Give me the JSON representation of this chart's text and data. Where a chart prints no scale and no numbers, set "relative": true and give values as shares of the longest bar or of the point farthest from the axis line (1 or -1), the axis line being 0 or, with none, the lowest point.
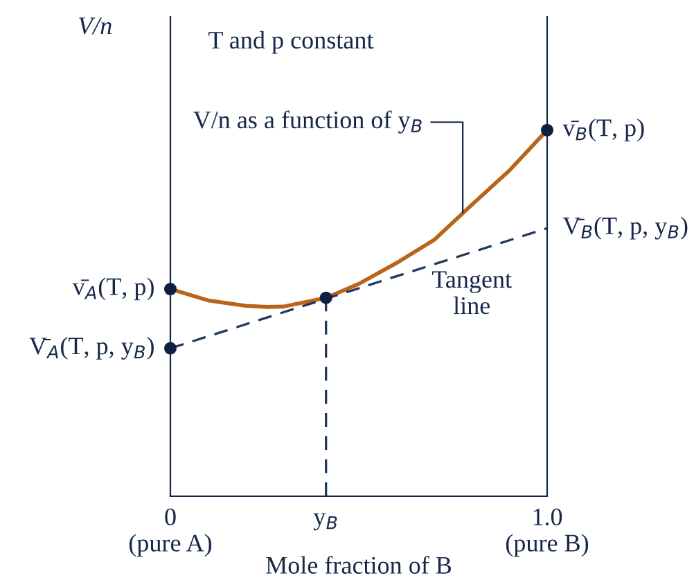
{
  "chart_data": {
    "type": "line",
    "relative": true,
    "ylabel": "V/n",
    "xlabel": "Mole fraction of B",
    "xlim": [
      0,
      1
    ],
    "xticks": [
      {
        "value": 0,
        "label": "0\n(pure A)"
      },
      {
        "value": 0.413,
        "label": "y$_{B}$"
      },
      {
        "value": 1,
        "label": "1.0\n(pure B)"
      }
    ],
    "grid": false,
    "series": [
      {
        "color": "#b8651b",
        "line_style": "solid",
        "x": [
          0,
          0.1,
          0.2,
          0.257,
          0.3,
          0.413,
          0.5,
          0.6,
          0.7,
          0.8,
          0.9,
          1.0
        ],
        "values": [
          0.566,
          0.535,
          0.52,
          0.517,
          0.518,
          0.542,
          0.58,
          0.637,
          0.7,
          0.796,
          0.89,
          1.0
        ]
      },
      {
        "color": "#1f3a5f",
        "line_style": "dashed",
        "x": [
          0,
          1
        ],
        "values": [
          0.404,
          0.732
        ]
      },
      {
        "color": "#1f3a5f",
        "line_style": "dashed",
        "x": [
          0.413,
          0.413
        ],
        "values": [
          0,
          0.542
        ]
      },
      {
        "type": "scatter",
        "color": "#0d2040",
        "marker": "circle",
        "x": [
          0,
          0,
          0.413,
          1
        ],
        "values": [
          0.566,
          0.404,
          0.542,
          1.0
        ]
      }
    ],
    "annotations": [
      {
        "text": "v̄$_{A}$(T, p)",
        "x": 0,
        "y": 0.566
      },
      {
        "text": "V̄$_{A}$(T, p, y$_{B}$)",
        "x": 0,
        "y": 0.404
      },
      {
        "text": "v̄$_{B}$(T, p)",
        "x": 1,
        "y": 1.0
      },
      {
        "text": "V̄$_{B}$(T, p, y$_{B}$)",
        "x": 1,
        "y": 0.732
      },
      {
        "text": "V/n as a function of y$_{B}$",
        "x": 0.776,
        "y": 0.764
      },
      "T and p constant",
      "Tangent\nline"
    ]
  }
}
